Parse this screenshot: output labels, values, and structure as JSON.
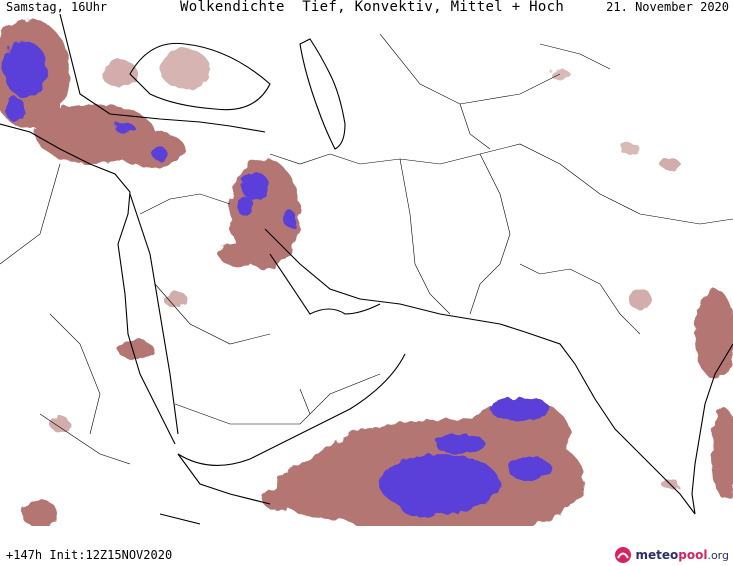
{
  "header": {
    "left": "Samstag, 16Uhr",
    "title": "Wolkendichte  Tief, Konvektiv, Mittel + Hoch",
    "date": "21. November 2020"
  },
  "footer": {
    "forecast": "+147h Init:12Z15NOV2020"
  },
  "logo": {
    "meteo": "meteo",
    "pool": "pool",
    "org": ".org"
  },
  "colors": {
    "cloud_low": "#9a4a44",
    "cloud_high": "#5a3fd9",
    "border": "#000000"
  }
}
